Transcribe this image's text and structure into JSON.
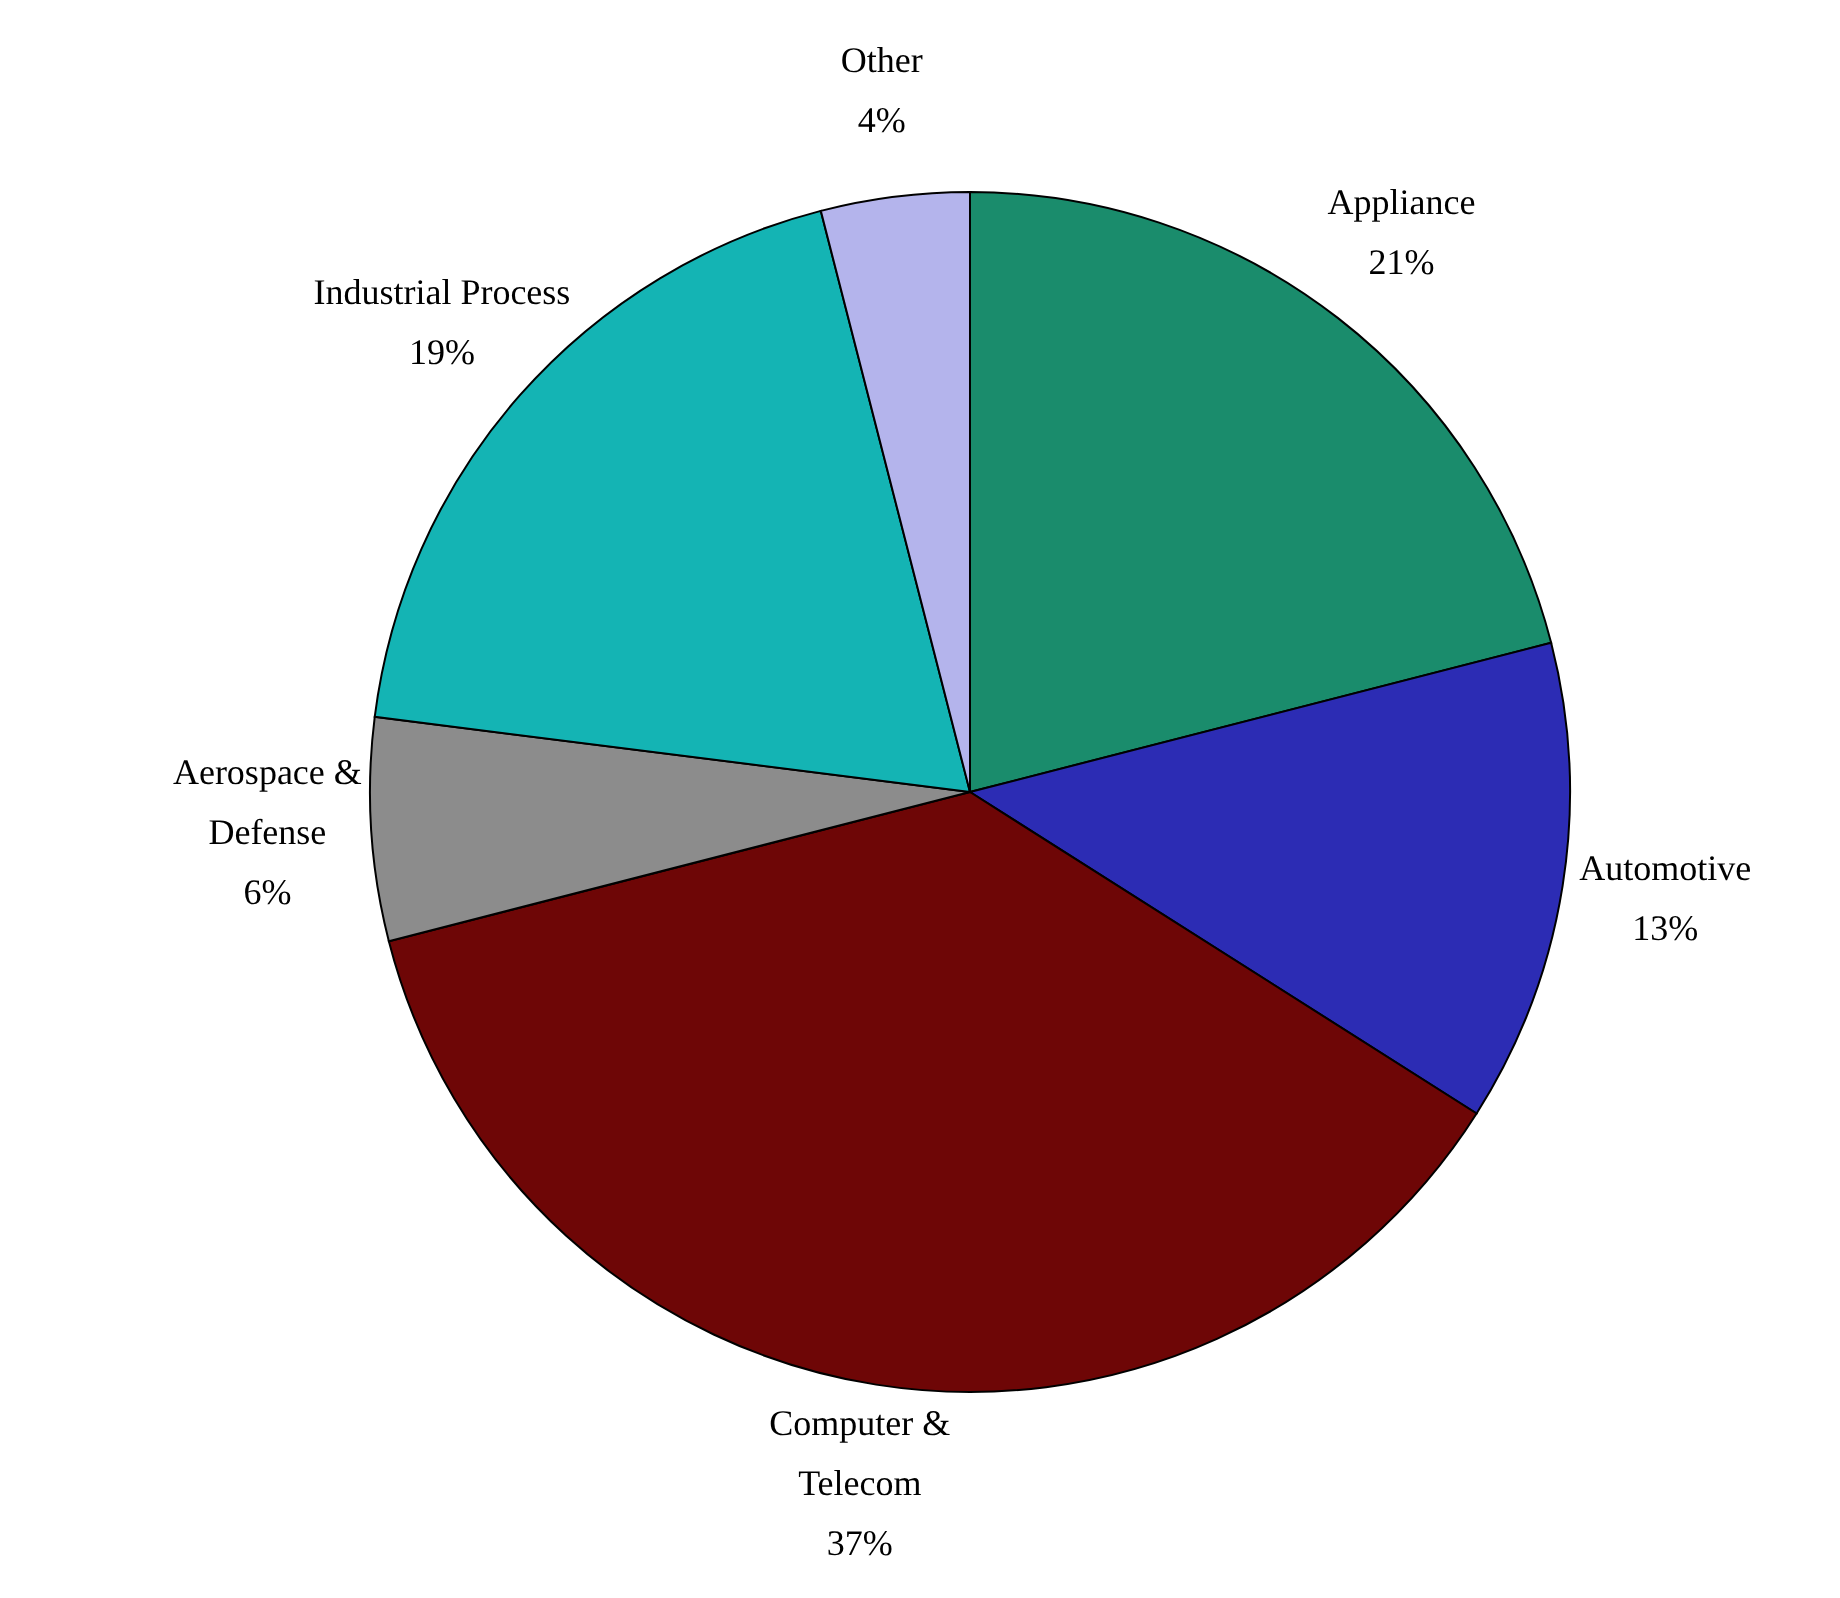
{
  "chart_data": {
    "type": "pie",
    "categories": [
      "Appliance",
      "Automotive",
      "Computer & Telecom",
      "Aerospace & Defense",
      "Industrial Process",
      "Other"
    ],
    "values": [
      21,
      13,
      37,
      6,
      19,
      4
    ],
    "colors": [
      "#1a8c6c",
      "#2c2cb4",
      "#6e0606",
      "#8c8c8c",
      "#14b4b4",
      "#b4b4ec"
    ],
    "value_labels": [
      "21%",
      "13%",
      "37%",
      "6%",
      "19%",
      "4%"
    ],
    "legend": false
  }
}
